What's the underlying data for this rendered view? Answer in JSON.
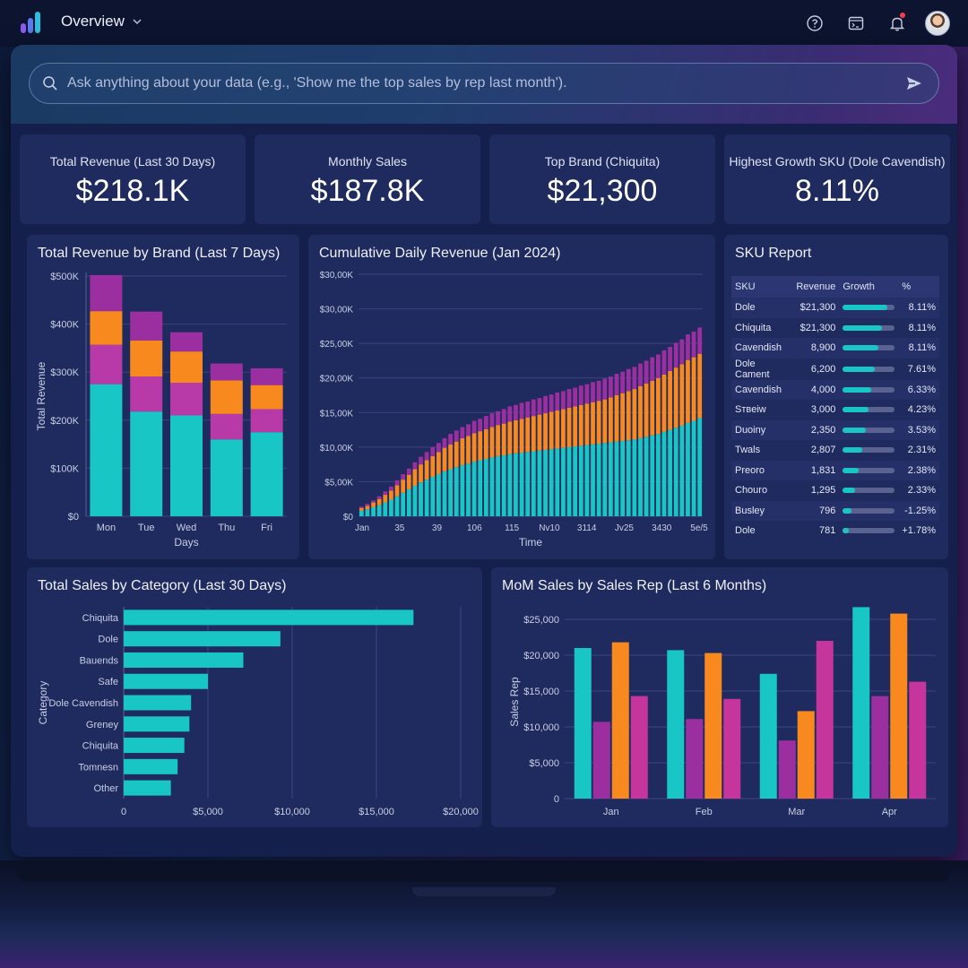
{
  "topbar": {
    "title": "Overview"
  },
  "search": {
    "placeholder": "Ask anything about your data (e.g., 'Show me the top sales by rep last month')."
  },
  "kpis": [
    {
      "label": "Total Revenue (Last 30 Days)",
      "value": "$218.1K"
    },
    {
      "label": "Monthly Sales",
      "value": "$187.8K"
    },
    {
      "label": "Top Brand (Chiquita)",
      "value": "$21,300"
    },
    {
      "label": "Highest Growth SKU (Dole Cavendish)",
      "value": "8.11%"
    }
  ],
  "colors": {
    "teal": "#19c6c6",
    "magenta": "#b83aa8",
    "orange": "#f7891f",
    "purple": "#9b2fa0",
    "pink": "#c5359c"
  },
  "chart_data": [
    {
      "type": "bar",
      "stacked": true,
      "title": "Total Revenue by Brand (Last 7 Days)",
      "xlabel": "Days",
      "ylabel": "Total Revenue",
      "ytick_labels": [
        "$0",
        "$100K",
        "$200K",
        "$300K",
        "$400K",
        "$500K"
      ],
      "ylim": [
        0,
        500
      ],
      "categories": [
        "Mon",
        "Tue",
        "Wed",
        "Thu",
        "Fri"
      ],
      "series": [
        {
          "values": [
            275,
            218,
            210,
            160,
            175
          ]
        },
        {
          "values": [
            82,
            73,
            68,
            53,
            48
          ]
        },
        {
          "values": [
            70,
            75,
            65,
            70,
            50
          ]
        },
        {
          "values": [
            75,
            60,
            40,
            35,
            35
          ]
        }
      ],
      "grid": true
    },
    {
      "type": "bar",
      "stacked": true,
      "title": "Cumulative Daily Revenue (Jan 2024)",
      "xlabel": "Time",
      "ytick_labels": [
        "$0",
        "$5,00K",
        "$10,00K",
        "$15,00K",
        "$20,00K",
        "$25,00K",
        "$30,00K",
        "$30,00K"
      ],
      "xtick_labels": [
        "Jan",
        "35",
        "39",
        "106",
        "115",
        "Nv10",
        "3114",
        "Jv25",
        "3430",
        "5e/5"
      ],
      "ylim": [
        0,
        35
      ],
      "x": [
        1,
        2,
        3,
        4,
        5,
        6,
        7,
        8,
        9,
        10,
        11,
        12,
        13,
        14,
        15,
        16,
        17,
        18,
        19,
        20,
        21,
        22,
        23,
        24,
        25,
        26,
        27,
        28,
        29,
        30,
        31,
        32,
        33,
        34,
        35,
        36,
        37,
        38,
        39,
        40,
        41,
        42,
        43,
        44,
        45,
        46,
        47,
        48,
        49,
        50,
        51,
        52,
        53,
        54,
        55,
        56,
        57,
        58
      ],
      "series": [
        {
          "values": [
            0.8,
            1.0,
            1.3,
            1.6,
            2.0,
            2.4,
            2.9,
            3.4,
            3.9,
            4.4,
            4.9,
            5.3,
            5.7,
            6.1,
            6.5,
            6.8,
            7.1,
            7.4,
            7.6,
            7.9,
            8.1,
            8.3,
            8.5,
            8.7,
            8.8,
            9.0,
            9.1,
            9.2,
            9.3,
            9.4,
            9.5,
            9.6,
            9.7,
            9.8,
            9.9,
            10.0,
            10.1,
            10.2,
            10.3,
            10.4,
            10.5,
            10.6,
            10.7,
            10.8,
            10.9,
            11.0,
            11.1,
            11.3,
            11.5,
            11.7,
            11.9,
            12.2,
            12.5,
            12.8,
            13.1,
            13.5,
            13.8,
            14.2
          ]
        },
        {
          "values": [
            0.4,
            0.5,
            0.7,
            0.9,
            1.1,
            1.3,
            1.6,
            1.9,
            2.1,
            2.4,
            2.6,
            2.8,
            3.0,
            3.2,
            3.4,
            3.6,
            3.7,
            3.9,
            4.0,
            4.1,
            4.2,
            4.3,
            4.4,
            4.5,
            4.6,
            4.7,
            4.8,
            4.9,
            5.0,
            5.1,
            5.2,
            5.3,
            5.4,
            5.5,
            5.6,
            5.7,
            5.8,
            5.9,
            6.0,
            6.1,
            6.2,
            6.3,
            6.5,
            6.7,
            6.9,
            7.1,
            7.3,
            7.5,
            7.7,
            7.9,
            8.1,
            8.3,
            8.5,
            8.7,
            8.9,
            9.1,
            9.2,
            9.3
          ]
        },
        {
          "values": [
            0.2,
            0.3,
            0.3,
            0.4,
            0.5,
            0.6,
            0.7,
            0.8,
            0.9,
            1.0,
            1.1,
            1.2,
            1.3,
            1.3,
            1.4,
            1.5,
            1.6,
            1.6,
            1.7,
            1.8,
            1.8,
            1.9,
            2.0,
            2.0,
            2.1,
            2.2,
            2.2,
            2.3,
            2.3,
            2.4,
            2.4,
            2.5,
            2.5,
            2.6,
            2.6,
            2.7,
            2.7,
            2.8,
            2.8,
            2.9,
            2.9,
            3.0,
            3.0,
            3.1,
            3.1,
            3.2,
            3.2,
            3.3,
            3.3,
            3.4,
            3.4,
            3.5,
            3.5,
            3.6,
            3.6,
            3.7,
            3.7,
            3.8
          ]
        }
      ]
    },
    {
      "type": "bar",
      "orientation": "horizontal",
      "title": "Total Sales by Category (Last 30 Days)",
      "ylabel": "Category",
      "categories": [
        "Chiquita",
        "Dole",
        "Bauends",
        "Safe",
        "Dole Cavendish",
        "Greney",
        "Chiquita",
        "Tomnesn",
        "Other"
      ],
      "values": [
        17200,
        9300,
        7100,
        5000,
        4000,
        3900,
        3600,
        3200,
        2800
      ],
      "xlim": [
        0,
        20000
      ],
      "xtick_labels": [
        "0",
        "$5,000",
        "$10,000",
        "$15,000",
        "$20,000"
      ],
      "grid": true
    },
    {
      "type": "bar",
      "title": "MoM Sales by Sales Rep (Last 6 Months)",
      "ylabel": "Sales Rep",
      "categories": [
        "Jan",
        "Feb",
        "Mar",
        "Apr"
      ],
      "ylim": [
        0,
        27000
      ],
      "ytick_labels": [
        "0",
        "$5,000",
        "$10,000",
        "$15,000",
        "$20,000",
        "$25,000"
      ],
      "series": [
        {
          "values": [
            21000,
            20700,
            17400,
            26700
          ]
        },
        {
          "values": [
            10700,
            11100,
            8100,
            14300
          ]
        },
        {
          "values": [
            21800,
            20300,
            12200,
            25800
          ]
        },
        {
          "values": [
            14300,
            13900,
            22000,
            16300
          ]
        }
      ],
      "grid": true
    }
  ],
  "sku_report": {
    "title": "SKU Report",
    "headers": [
      "SKU",
      "Revenue",
      "Growth",
      "%"
    ],
    "rows": [
      {
        "sku": "Dole",
        "revenue": "$21,300",
        "growth": 0.85,
        "pct": "8.11%"
      },
      {
        "sku": "Chiquita",
        "revenue": "$21,300",
        "growth": 0.75,
        "pct": "8.11%"
      },
      {
        "sku": "Cavendish",
        "revenue": "8,900",
        "growth": 0.68,
        "pct": "8.11%"
      },
      {
        "sku": "Dole Cament",
        "revenue": "6,200",
        "growth": 0.62,
        "pct": "7.61%"
      },
      {
        "sku": "Cavendish",
        "revenue": "4,000",
        "growth": 0.55,
        "pct": "6.33%"
      },
      {
        "sku": "Sтвeiw",
        "revenue": "3,000",
        "growth": 0.5,
        "pct": "4.23%"
      },
      {
        "sku": "Duoiny",
        "revenue": "2,350",
        "growth": 0.45,
        "pct": "3.53%"
      },
      {
        "sku": "Twals",
        "revenue": "2,807",
        "growth": 0.38,
        "pct": "2.31%"
      },
      {
        "sku": "Preoro",
        "revenue": "1,831",
        "growth": 0.3,
        "pct": "2.38%"
      },
      {
        "sku": "Chouro",
        "revenue": "1,295",
        "growth": 0.24,
        "pct": "2.33%"
      },
      {
        "sku": "Busley",
        "revenue": "796",
        "growth": 0.16,
        "pct": "-1.25%"
      },
      {
        "sku": "Dole",
        "revenue": "781",
        "growth": 0.12,
        "pct": "+1.78%"
      }
    ]
  }
}
